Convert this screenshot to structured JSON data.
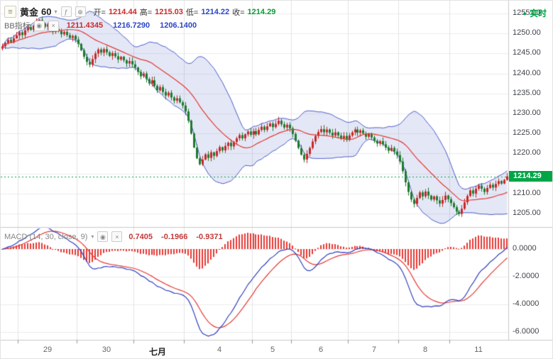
{
  "header": {
    "symbol": "黄金",
    "interval": "60",
    "realtime_label": "实时",
    "ohlc": {
      "open_label": "开=",
      "open": "1214.44",
      "high_label": "高=",
      "high": "1215.03",
      "low_label": "低=",
      "low": "1214.22",
      "close_label": "收=",
      "close": "1214.29"
    }
  },
  "bb": {
    "label": "BB指标",
    "mid": "1211.4345",
    "upper": "1216.7290",
    "lower": "1206.1400"
  },
  "macd_row": {
    "label": "MACD (14, 30, close, 9)",
    "hist": "0.7405",
    "dif": "-0.1966",
    "dea": "-0.9371"
  },
  "icons": {
    "menu": "≡",
    "chevron_down": "▾",
    "indicator": "ƒ",
    "add": "⊕",
    "visibility": "◉",
    "close": "×",
    "realtime_dot": "●"
  },
  "price_axis": {
    "labels": [
      "1255.00",
      "1250.00",
      "1245.00",
      "1240.00",
      "1235.00",
      "1230.00",
      "1225.00",
      "1220.00",
      "1215.00",
      "1210.00",
      "1205.00"
    ],
    "last_price": "1214.29"
  },
  "macd_axis": {
    "labels": [
      "0.0000",
      "-2.0000",
      "-4.0000",
      "-6.0000"
    ]
  },
  "colors": {
    "up": "#c62828",
    "down": "#1f7a2f",
    "bb_band": "#4a5acb",
    "bb_fill": "rgba(90,110,200,0.16)",
    "bb_mid": "#e53935",
    "macd_dif": "#2f3fbf",
    "macd_dea": "#e53935",
    "macd_hist": "#e53935",
    "last_price": "#00a546",
    "realtime": "#00a146",
    "grid": "#ededed",
    "grid_v": "#e4e4e4",
    "divider": "#c9c9c9",
    "tick": "#999999"
  },
  "chart_data": [
    {
      "type": "candlestick",
      "title": "黄金 60",
      "x_labels": [
        "29",
        "30",
        "七月",
        "4",
        "5",
        "6",
        "7",
        "8",
        "11"
      ],
      "y_ticks": [
        1255,
        1250,
        1245,
        1240,
        1235,
        1230,
        1225,
        1220,
        1215,
        1210,
        1205
      ],
      "ylim": [
        1202.5,
        1258.2
      ],
      "last": {
        "open": 1214.44,
        "high": 1215.03,
        "low": 1214.22,
        "close": 1214.29
      },
      "bollinger": {
        "period": 20,
        "k": 2,
        "current": {
          "mid": 1211.4345,
          "upper": 1216.729,
          "lower": 1206.14
        }
      },
      "day_start_indices": [
        6,
        27,
        47,
        65,
        89,
        103,
        123,
        141,
        159
      ],
      "closes": [
        1246.8,
        1247.6,
        1248.4,
        1247.8,
        1248.8,
        1249.5,
        1250.3,
        1249.6,
        1250.8,
        1251.6,
        1250.9,
        1252.0,
        1252.8,
        1253.4,
        1252.5,
        1251.7,
        1252.3,
        1251.1,
        1250.4,
        1251.2,
        1250.6,
        1249.8,
        1250.4,
        1249.6,
        1248.9,
        1249.4,
        1248.5,
        1247.4,
        1245.8,
        1244.2,
        1242.9,
        1242.2,
        1243.6,
        1245.0,
        1246.0,
        1245.2,
        1246.1,
        1245.3,
        1244.4,
        1245.1,
        1244.3,
        1243.5,
        1244.2,
        1243.3,
        1242.5,
        1243.1,
        1242.3,
        1241.5,
        1240.4,
        1239.3,
        1240.0,
        1238.6,
        1237.5,
        1238.3,
        1236.9,
        1235.8,
        1236.6,
        1235.4,
        1234.5,
        1235.2,
        1234.0,
        1233.2,
        1233.8,
        1232.8,
        1232.0,
        1230.5,
        1228.2,
        1225.0,
        1221.5,
        1218.8,
        1217.3,
        1218.5,
        1219.8,
        1218.9,
        1220.3,
        1219.4,
        1220.6,
        1221.6,
        1220.8,
        1221.9,
        1222.7,
        1221.8,
        1222.9,
        1223.8,
        1224.6,
        1223.8,
        1224.8,
        1225.5,
        1224.7,
        1225.6,
        1224.8,
        1225.9,
        1226.7,
        1225.9,
        1226.8,
        1227.5,
        1226.6,
        1227.4,
        1228.2,
        1227.3,
        1226.5,
        1227.2,
        1226.3,
        1224.9,
        1223.2,
        1221.4,
        1219.7,
        1218.5,
        1219.9,
        1221.4,
        1223.0,
        1224.4,
        1225.4,
        1226.1,
        1225.3,
        1226.0,
        1225.2,
        1224.5,
        1225.3,
        1224.5,
        1223.7,
        1224.4,
        1223.6,
        1224.5,
        1225.3,
        1226.0,
        1225.2,
        1225.8,
        1225.0,
        1224.2,
        1224.9,
        1224.0,
        1223.2,
        1222.5,
        1223.1,
        1222.3,
        1221.5,
        1220.7,
        1221.4,
        1220.5,
        1219.6,
        1218.0,
        1215.6,
        1212.8,
        1210.4,
        1208.5,
        1207.4,
        1208.9,
        1210.3,
        1209.3,
        1210.5,
        1209.5,
        1208.5,
        1209.3,
        1208.3,
        1207.5,
        1208.4,
        1209.5,
        1208.6,
        1207.6,
        1206.6,
        1205.5,
        1204.9,
        1206.2,
        1207.8,
        1209.4,
        1210.8,
        1210.0,
        1211.2,
        1212.0,
        1211.2,
        1210.4,
        1211.4,
        1212.2,
        1211.5,
        1212.4,
        1213.1,
        1212.5,
        1213.4,
        1214.29
      ]
    },
    {
      "type": "macd",
      "label": "MACD (14, 30, close, 9)",
      "params": {
        "fast": 14,
        "slow": 30,
        "source": "close",
        "signal": 9
      },
      "current": {
        "hist": 0.7405,
        "dif": -0.1966,
        "dea": -0.9371
      },
      "y_ticks": [
        0,
        -2,
        -4,
        -6
      ],
      "ylim": [
        -6.8,
        1.4
      ],
      "dif_min": -6.3
    }
  ]
}
